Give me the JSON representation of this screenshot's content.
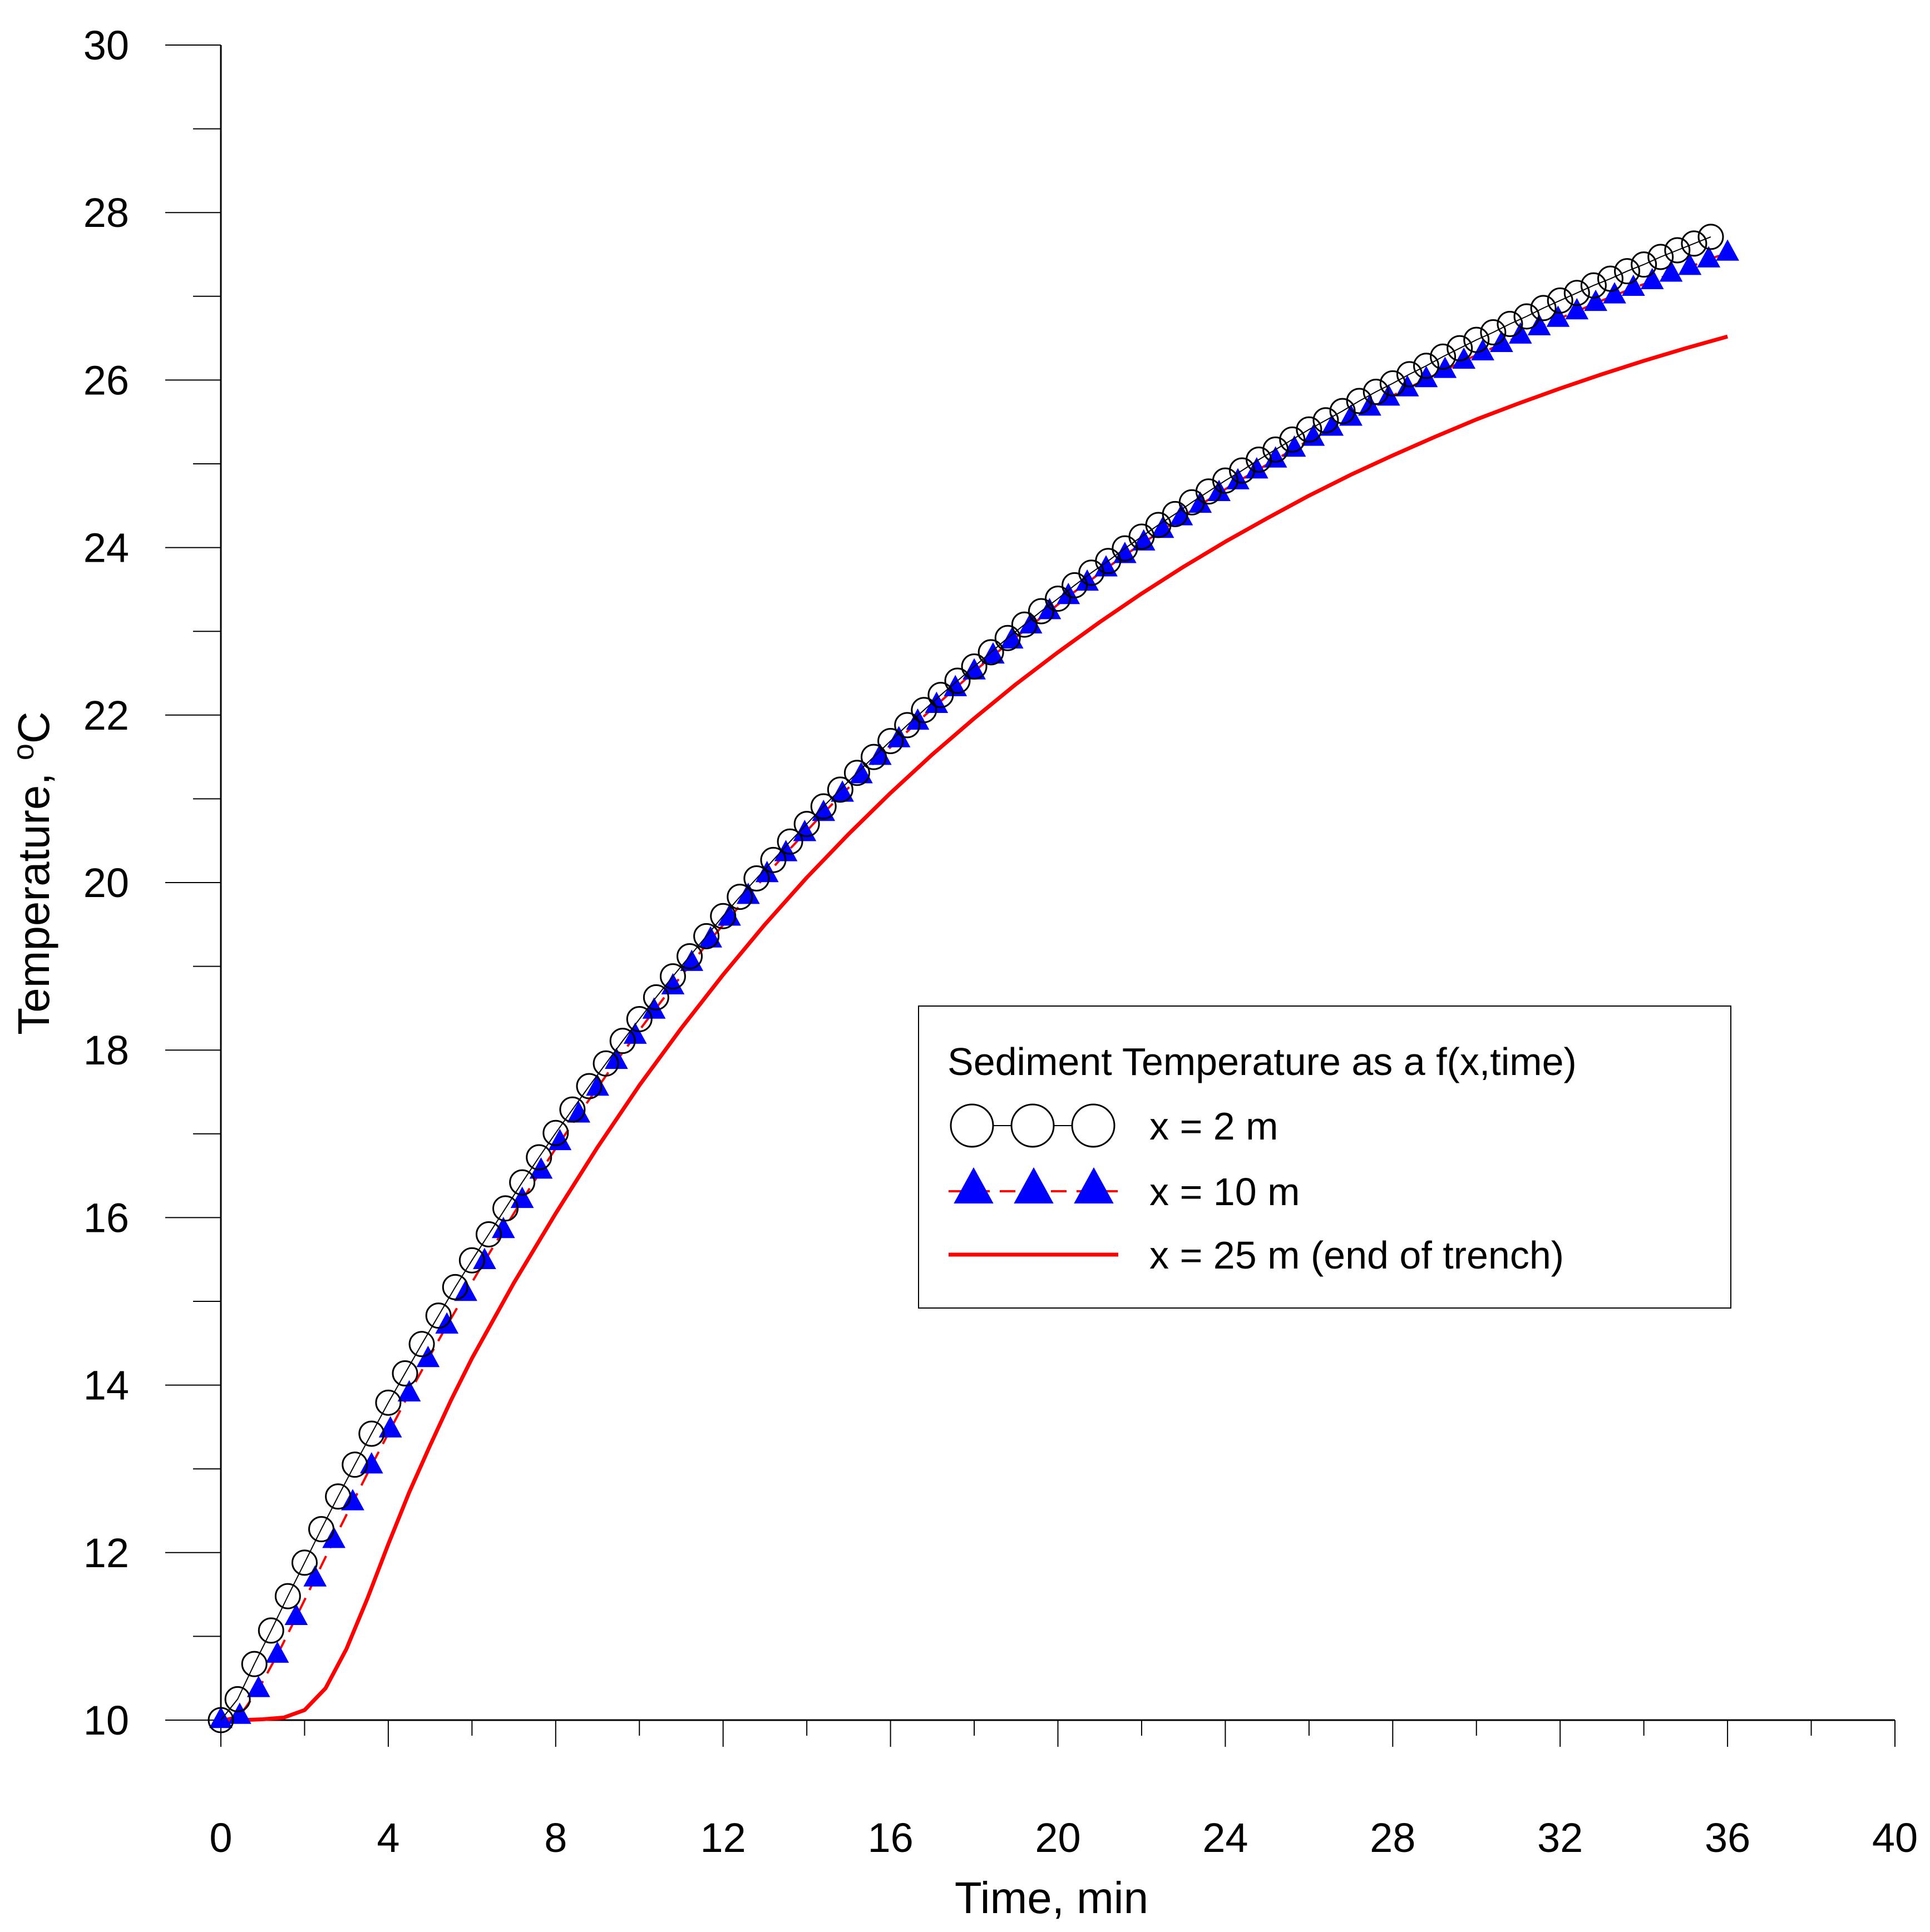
{
  "chart_data": {
    "type": "line",
    "xlabel": "Time, min",
    "ylabel_main": "Temperature, ",
    "ylabel_sup": "o",
    "ylabel_unit": "C",
    "xlim": [
      0,
      40
    ],
    "ylim": [
      10,
      30
    ],
    "xticks": [
      "0",
      "4",
      "8",
      "12",
      "16",
      "20",
      "24",
      "28",
      "32",
      "36",
      "40"
    ],
    "yticks": [
      "10",
      "12",
      "14",
      "16",
      "18",
      "20",
      "22",
      "24",
      "26",
      "28",
      "30"
    ],
    "grid": false,
    "legend": {
      "title": "Sediment Temperature as a f(x,time)",
      "position": "center-right",
      "entries": [
        "x = 2 m",
        "x = 10 m",
        "x = 25 m (end of trench)"
      ]
    },
    "series": [
      {
        "name": "x = 2 m",
        "marker": "open-circle",
        "color": "#000000",
        "x": [
          0,
          0.4,
          0.8,
          1.2,
          1.6,
          2.0,
          2.4,
          2.8,
          3.2,
          3.6,
          4.0,
          4.4,
          4.8,
          5.2,
          5.6,
          6.0,
          6.4,
          6.8,
          7.2,
          7.6,
          8.0,
          8.4,
          8.8,
          9.2,
          9.6,
          10.0,
          10.4,
          10.8,
          11.2,
          11.6,
          12.0,
          12.4,
          12.8,
          13.2,
          13.6,
          14.0,
          14.4,
          14.8,
          15.2,
          15.6,
          16.0,
          16.4,
          16.8,
          17.2,
          17.6,
          18.0,
          18.4,
          18.8,
          19.2,
          19.6,
          20.0,
          20.4,
          20.8,
          21.2,
          21.6,
          22.0,
          22.4,
          22.8,
          23.2,
          23.6,
          24.0,
          24.4,
          24.8,
          25.2,
          25.6,
          26.0,
          26.4,
          26.8,
          27.2,
          27.6,
          28.0,
          28.4,
          28.8,
          29.2,
          29.6,
          30.0,
          30.4,
          30.8,
          31.2,
          31.6,
          32.0,
          32.4,
          32.8,
          33.2,
          33.6,
          34.0,
          34.4,
          34.8,
          35.2,
          35.6
        ],
        "values": [
          10.0,
          10.25,
          10.67,
          11.07,
          11.48,
          11.88,
          12.28,
          12.67,
          13.05,
          13.42,
          13.79,
          14.14,
          14.49,
          14.83,
          15.17,
          15.49,
          15.8,
          16.11,
          16.42,
          16.72,
          17.01,
          17.29,
          17.57,
          17.84,
          18.11,
          18.37,
          18.63,
          18.88,
          19.12,
          19.36,
          19.6,
          19.83,
          20.05,
          20.27,
          20.49,
          20.7,
          20.91,
          21.11,
          21.31,
          21.5,
          21.69,
          21.88,
          22.06,
          22.24,
          22.41,
          22.58,
          22.75,
          22.92,
          23.08,
          23.24,
          23.39,
          23.55,
          23.7,
          23.84,
          23.99,
          24.13,
          24.27,
          24.4,
          24.54,
          24.67,
          24.8,
          24.92,
          25.05,
          25.17,
          25.29,
          25.41,
          25.52,
          25.63,
          25.75,
          25.86,
          25.96,
          26.07,
          26.17,
          26.28,
          26.38,
          26.48,
          26.57,
          26.67,
          26.76,
          26.86,
          26.95,
          27.04,
          27.13,
          27.21,
          27.3,
          27.38,
          27.47,
          27.55,
          27.63,
          27.71
        ]
      },
      {
        "name": "x = 10 m",
        "marker": "filled-triangle",
        "marker_color": "#0000ff",
        "line_color": "#ff0000",
        "line_style": "dashed",
        "x": [
          0,
          0.45,
          0.9,
          1.35,
          1.8,
          2.25,
          2.7,
          3.15,
          3.6,
          4.05,
          4.5,
          4.95,
          5.4,
          5.85,
          6.3,
          6.75,
          7.2,
          7.65,
          8.1,
          8.55,
          9.0,
          9.45,
          9.9,
          10.35,
          10.8,
          11.25,
          11.7,
          12.15,
          12.6,
          13.05,
          13.5,
          13.95,
          14.4,
          14.85,
          15.3,
          15.75,
          16.2,
          16.65,
          17.1,
          17.55,
          18.0,
          18.45,
          18.9,
          19.35,
          19.8,
          20.25,
          20.7,
          21.15,
          21.6,
          22.05,
          22.5,
          22.95,
          23.4,
          23.85,
          24.3,
          24.75,
          25.2,
          25.65,
          26.1,
          26.55,
          27.0,
          27.45,
          27.9,
          28.35,
          28.8,
          29.25,
          29.7,
          30.15,
          30.6,
          31.05,
          31.5,
          31.95,
          32.4,
          32.85,
          33.3,
          33.75,
          34.2,
          34.65,
          35.1,
          35.55,
          36.0
        ],
        "values": [
          10.0,
          10.05,
          10.37,
          10.78,
          11.23,
          11.69,
          12.15,
          12.6,
          13.04,
          13.47,
          13.9,
          14.31,
          14.71,
          15.1,
          15.48,
          15.85,
          16.21,
          16.56,
          16.9,
          17.23,
          17.55,
          17.87,
          18.17,
          18.47,
          18.76,
          19.04,
          19.32,
          19.58,
          19.84,
          20.1,
          20.35,
          20.59,
          20.83,
          21.06,
          21.28,
          21.5,
          21.71,
          21.92,
          22.12,
          22.32,
          22.52,
          22.71,
          22.89,
          23.07,
          23.24,
          23.42,
          23.58,
          23.75,
          23.91,
          24.06,
          24.21,
          24.36,
          24.51,
          24.65,
          24.79,
          24.92,
          25.05,
          25.18,
          25.31,
          25.43,
          25.55,
          25.67,
          25.79,
          25.9,
          26.01,
          26.12,
          26.23,
          26.33,
          26.43,
          26.53,
          26.63,
          26.73,
          26.82,
          26.92,
          27.01,
          27.1,
          27.18,
          27.27,
          27.35,
          27.44,
          27.52
        ]
      },
      {
        "name": "x = 25 m (end of trench)",
        "marker": "none",
        "line_color": "#ff0000",
        "line_style": "solid",
        "x": [
          0,
          0.5,
          1.0,
          1.5,
          2.0,
          2.5,
          3.0,
          3.5,
          4.0,
          4.5,
          5.0,
          5.5,
          6.0,
          7.0,
          8.0,
          9.0,
          10.0,
          11.0,
          12.0,
          13.0,
          14.0,
          15.0,
          16.0,
          17.0,
          18.0,
          19.0,
          20.0,
          21.0,
          22.0,
          23.0,
          24.0,
          25.0,
          26.0,
          27.0,
          28.0,
          29.0,
          30.0,
          31.0,
          32.0,
          33.0,
          34.0,
          35.0,
          36.0
        ],
        "values": [
          10.0,
          10.0,
          10.01,
          10.03,
          10.12,
          10.38,
          10.85,
          11.45,
          12.1,
          12.72,
          13.28,
          13.82,
          14.32,
          15.22,
          16.05,
          16.84,
          17.58,
          18.26,
          18.9,
          19.5,
          20.06,
          20.58,
          21.07,
          21.53,
          21.96,
          22.37,
          22.75,
          23.11,
          23.45,
          23.77,
          24.07,
          24.35,
          24.62,
          24.87,
          25.1,
          25.32,
          25.53,
          25.72,
          25.9,
          26.07,
          26.23,
          26.38,
          26.52
        ]
      }
    ]
  }
}
